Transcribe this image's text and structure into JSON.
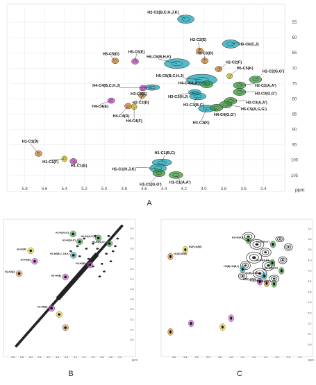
{
  "panel_labels": {
    "a": "A",
    "b": "B",
    "c": "C"
  },
  "colors": {
    "teal": "#1aa6b7",
    "green": "#3a9a3a",
    "orange": "#e0892c",
    "yellow": "#e8d22a",
    "magenta": "#d04ad0",
    "black": "#1a1a1a",
    "grid": "#e6e6e6"
  },
  "chart_data": [
    {
      "panel": "A",
      "type": "scatter",
      "xlabel": "ppm",
      "ylabel": "",
      "x_ticks": [
        "5.8",
        "5.6",
        "5.4",
        "5.2",
        "5.0",
        "4.8",
        "4.6",
        "4.4",
        "4.2",
        "4.0",
        "3.8",
        "3.6",
        "3.4"
      ],
      "y_ticks": [
        "55",
        "60",
        "65",
        "70",
        "75",
        "80",
        "85",
        "90",
        "95",
        "100",
        "105"
      ],
      "xlim": [
        5.95,
        3.2
      ],
      "ylim": [
        50,
        108
      ],
      "peaks": [
        {
          "label": "H2-C2(B,C,H,J,K)",
          "x": 4.18,
          "y": 54.0,
          "color": "teal"
        },
        {
          "label": "H2-C2(E)",
          "x": 4.04,
          "y": 64.3,
          "color": "orange"
        },
        {
          "label": "H3-C3(D)",
          "x": 3.99,
          "y": 67.6,
          "color": "orange"
        },
        {
          "label": "H6-C6(C,J)",
          "x": 3.73,
          "y": 62.1,
          "color": "teal"
        },
        {
          "label": "H5-C5(D)",
          "x": 4.89,
          "y": 67.6,
          "color": "orange"
        },
        {
          "label": "H5-C5(E)",
          "x": 4.69,
          "y": 67.8,
          "color": "magenta"
        },
        {
          "label": "H6-C6(B,H,K)",
          "x": 4.27,
          "y": 68.5,
          "color": "teal"
        },
        {
          "label": "H2-C2(F)",
          "x": 3.85,
          "y": 70.3,
          "color": "orange"
        },
        {
          "label": "H5-C5(K)",
          "x": 3.74,
          "y": 72.6,
          "color": "yellow"
        },
        {
          "label": "H5-C5(B,C,H,J)",
          "x": 4.02,
          "y": 73.8,
          "color": "teal"
        },
        {
          "label": "H2-C2(G,G')",
          "x": 3.48,
          "y": 73.7,
          "color": "green"
        },
        {
          "label": "H4-C4(A,A')",
          "x": 3.97,
          "y": 75.3,
          "color": "green"
        },
        {
          "label": "H2-C2(A,A')",
          "x": 3.64,
          "y": 75.6,
          "color": "green"
        },
        {
          "label": "H4-C4(B,C,H,J)",
          "x": 4.52,
          "y": 76.3,
          "color": "teal"
        },
        {
          "label": "H3-C3(E)",
          "x": 4.61,
          "y": 76.5,
          "color": "magenta"
        },
        {
          "label": "H3-C3(G,G')",
          "x": 3.64,
          "y": 77.8,
          "color": "green"
        },
        {
          "label": "H3-C3(H,J)",
          "x": 4.09,
          "y": 77.9,
          "color": "teal"
        },
        {
          "label": "H4-C4(E)",
          "x": 4.93,
          "y": 80.6,
          "color": "magenta"
        },
        {
          "label": "H2-C2(D)",
          "x": 4.62,
          "y": 78.9,
          "color": "orange"
        },
        {
          "label": "H3-C3(B,C)",
          "x": 4.06,
          "y": 79.2,
          "color": "teal"
        },
        {
          "label": "H3-C3(A,A')",
          "x": 3.73,
          "y": 80.7,
          "color": "green"
        },
        {
          "label": "H5-C5(A,G,G')",
          "x": 3.78,
          "y": 81.9,
          "color": "green"
        },
        {
          "label": "H4-C4(D)",
          "x": 4.76,
          "y": 82.4,
          "color": "orange"
        },
        {
          "label": "H4-C4(F)",
          "x": 4.7,
          "y": 82.6,
          "color": "yellow"
        },
        {
          "label": "H3-C3(K)",
          "x": 3.97,
          "y": 83.2,
          "color": "teal"
        },
        {
          "label": "H4-C4(G,G')",
          "x": 3.87,
          "y": 82.9,
          "color": "green"
        },
        {
          "label": "H1-C1(D)",
          "x": 5.66,
          "y": 97.9,
          "color": "orange"
        },
        {
          "label": "H1-C1(F)",
          "x": 5.4,
          "y": 99.6,
          "color": "yellow"
        },
        {
          "label": "H1-C1(E)",
          "x": 5.31,
          "y": 100.4,
          "color": "magenta"
        },
        {
          "label": "H1-C1(B,C)",
          "x": 4.42,
          "y": 100.8,
          "color": "teal"
        },
        {
          "label": "H1-C1(H,J,K)",
          "x": 4.46,
          "y": 102.7,
          "color": "teal"
        },
        {
          "label": "H1-C1(G,G')",
          "x": 4.45,
          "y": 104.3,
          "color": "green"
        },
        {
          "label": "H1-C1(A,A')",
          "x": 4.28,
          "y": 104.9,
          "color": "green"
        }
      ]
    },
    {
      "panel": "B",
      "type": "scatter",
      "xlabel": "ppm",
      "x_ticks": [
        "5.8",
        "5.6",
        "5.4",
        "5.2",
        "5.0",
        "4.8",
        "4.6",
        "4.4",
        "4.2",
        "4.0",
        "3.8",
        "3.6",
        "3.4"
      ],
      "y_ticks": [
        "3.4",
        "3.6",
        "3.8",
        "4.0",
        "4.2",
        "4.4",
        "4.6",
        "4.8",
        "5.0",
        "5.2",
        "5.4",
        "5.6"
      ],
      "xlim": [
        5.95,
        3.25
      ],
      "ylim": [
        3.3,
        5.85
      ],
      "peaks": [
        {
          "label": "H1-H2(G,G')",
          "x": 4.45,
          "y": 3.51,
          "color": "green"
        },
        {
          "label": "H3-H4(G,G')",
          "x": 3.88,
          "y": 3.59,
          "color": "green"
        },
        {
          "label": "H1-H2(A,A')",
          "x": 4.3,
          "y": 3.66,
          "color": "green"
        },
        {
          "label": "H2-H3(G,G')",
          "x": 3.63,
          "y": 3.7,
          "color": "green"
        },
        {
          "label": "H1-H2(F)",
          "x": 5.4,
          "y": 3.84,
          "color": "yellow"
        },
        {
          "label": "H1-H2(B,C,J,H,K)",
          "x": 4.44,
          "y": 3.93,
          "color": "teal"
        },
        {
          "label": "H1-H2(E)",
          "x": 5.31,
          "y": 4.05,
          "color": "magenta"
        },
        {
          "label": "H2-H3(E)",
          "x": 4.07,
          "y": 4.12,
          "color": "magenta"
        },
        {
          "label": "H1-H2(D)",
          "x": 5.66,
          "y": 4.29,
          "color": "orange"
        },
        {
          "label": "H3-H4(E)",
          "x": 4.62,
          "y": 4.36,
          "color": "magenta"
        },
        {
          "label": "H4-H5(E)",
          "x": 4.93,
          "y": 4.98,
          "color": "magenta"
        },
        {
          "label": "",
          "x": 4.76,
          "y": 5.1,
          "color": "yellow"
        },
        {
          "label": "",
          "x": 4.62,
          "y": 5.36,
          "color": "orange"
        }
      ]
    },
    {
      "panel": "C",
      "type": "scatter",
      "xlabel": "ppm",
      "x_ticks": [
        "5.6",
        "5.4",
        "5.2",
        "5.0",
        "4.8",
        "4.6",
        "4.4",
        "4.2",
        "4.0",
        "3.8",
        "3.6",
        "3.4"
      ],
      "y_ticks": [
        "3.4",
        "3.6",
        "3.8",
        "4.0",
        "4.2",
        "4.4",
        "4.6",
        "4.8",
        "5.0",
        "5.2",
        "5.4",
        "5.6"
      ],
      "xlim": [
        5.75,
        3.3
      ],
      "ylim": [
        3.3,
        5.75
      ],
      "peaks": [
        {
          "label": "H1-H2(A,A')",
          "x": 4.3,
          "y": 3.62,
          "color": "green"
        },
        {
          "label": "H1-H3(G,G')",
          "x": 3.87,
          "y": 3.7,
          "color": "green"
        },
        {
          "label": "H1(F)-H2(E)",
          "x": 5.4,
          "y": 3.8,
          "color": "yellow"
        },
        {
          "label": "H1(D)-H2(E)",
          "x": 5.66,
          "y": 3.93,
          "color": "orange"
        },
        {
          "label": "H1-H4(A,A')",
          "x": 3.88,
          "y": 4.05,
          "color": "green"
        },
        {
          "label": "H1(B)-H4(B,J)",
          "x": 4.4,
          "y": 4.17,
          "color": "teal"
        },
        {
          "label": "H1-H2(G,G')",
          "x": 3.72,
          "y": 4.2,
          "color": "green"
        },
        {
          "label": "H1(B)-H4(B,J)",
          "x": 4.02,
          "y": 4.3,
          "color": "teal"
        },
        {
          "label": "H1(E)-H2(G)",
          "x": 4.1,
          "y": 4.41,
          "color": "magenta"
        },
        {
          "label": "H1(D)-H4(G)",
          "x": 3.98,
          "y": 4.44,
          "color": "orange"
        },
        {
          "label": "H1(E)-H4(G')",
          "x": 3.85,
          "y": 4.45,
          "color": "green"
        },
        {
          "label": "",
          "x": 4.6,
          "y": 5.1,
          "color": "magenta"
        },
        {
          "label": "",
          "x": 5.3,
          "y": 5.2,
          "color": "magenta"
        },
        {
          "label": "",
          "x": 4.75,
          "y": 5.27,
          "color": "yellow"
        },
        {
          "label": "",
          "x": 5.66,
          "y": 5.36,
          "color": "orange"
        }
      ]
    }
  ]
}
